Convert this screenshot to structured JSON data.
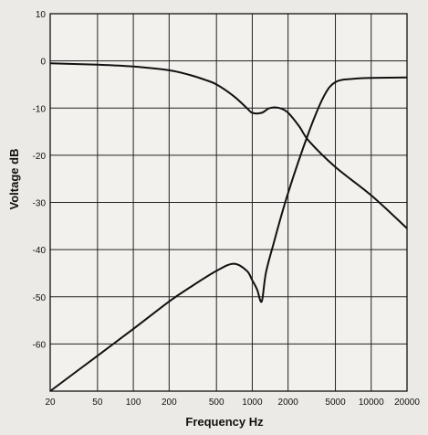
{
  "chart_data": {
    "type": "line",
    "xlabel": "Frequency Hz",
    "ylabel": "Voltage dB",
    "xscale": "log",
    "xlim": [
      20,
      20000
    ],
    "ylim": [
      -70,
      10
    ],
    "grid": true,
    "x_ticks": [
      20,
      50,
      100,
      200,
      500,
      1000,
      2000,
      5000,
      10000,
      20000
    ],
    "x_tick_labels": [
      "20",
      "50",
      "100",
      "200",
      "500",
      "1000",
      "2000",
      "5000",
      "10000",
      "20000"
    ],
    "y_ticks": [
      10,
      0,
      -10,
      -20,
      -30,
      -40,
      -50,
      -60
    ],
    "y_tick_labels": [
      "10",
      "0",
      "-10",
      "-20",
      "-30",
      "-40",
      "-50",
      "-60"
    ],
    "series": [
      {
        "x": [
          20,
          50,
          100,
          200,
          300,
          400,
          500,
          700,
          900,
          1000,
          1200,
          1400,
          1700,
          2000,
          2500,
          3000,
          5000,
          10000,
          20000
        ],
        "y": [
          -0.5,
          -0.8,
          -1.2,
          -2,
          -3,
          -4,
          -5,
          -7.5,
          -10,
          -11,
          -11,
          -10,
          -10,
          -11,
          -14,
          -17,
          -22.5,
          -28.5,
          -35.5
        ]
      },
      {
        "x": [
          20,
          50,
          100,
          200,
          300,
          500,
          700,
          900,
          1000,
          1100,
          1200,
          1300,
          1500,
          2000,
          3000,
          4000,
          5000,
          7000,
          10000,
          20000
        ],
        "y": [
          -70,
          -62.5,
          -56.8,
          -51,
          -48,
          -44.5,
          -43,
          -44.5,
          -46.5,
          -48.5,
          -51,
          -45,
          -39,
          -28,
          -15,
          -7.5,
          -4.5,
          -3.8,
          -3.6,
          -3.5
        ]
      }
    ]
  }
}
